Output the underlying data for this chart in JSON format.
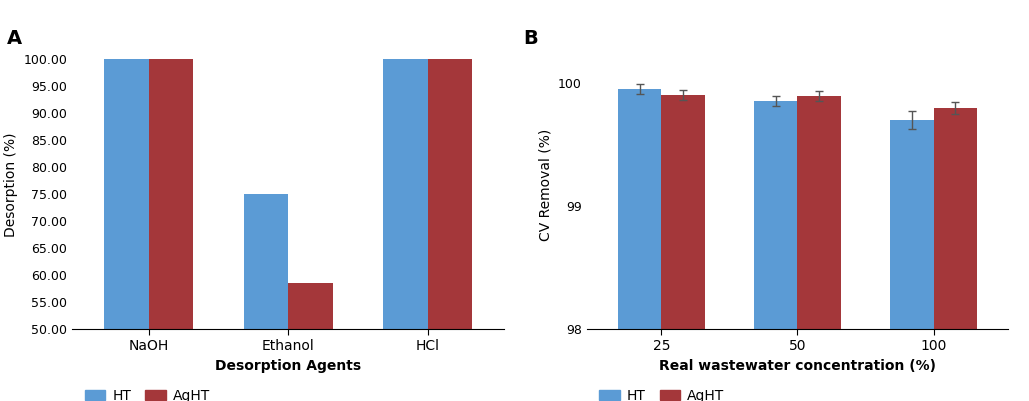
{
  "panel_a": {
    "title": "A",
    "categories": [
      "NaOH",
      "Ethanol",
      "HCl"
    ],
    "ht_values": [
      100.0,
      75.0,
      100.0
    ],
    "aght_values": [
      100.0,
      58.5,
      100.0
    ],
    "ylabel": "Desorption (%)",
    "xlabel": "Desorption Agents",
    "ylim": [
      50.0,
      103.5
    ],
    "yticks": [
      50.0,
      55.0,
      60.0,
      65.0,
      70.0,
      75.0,
      80.0,
      85.0,
      90.0,
      95.0,
      100.0
    ],
    "bar_width": 0.32,
    "ht_color": "#5B9BD5",
    "aght_color": "#A4373A"
  },
  "panel_b": {
    "title": "B",
    "categories": [
      "25",
      "50",
      "100"
    ],
    "ht_values": [
      99.95,
      99.855,
      99.7
    ],
    "aght_values": [
      99.9,
      99.895,
      99.8
    ],
    "ht_errors": [
      0.04,
      0.04,
      0.07
    ],
    "aght_errors": [
      0.04,
      0.04,
      0.05
    ],
    "ylabel": "CV Removal (%)",
    "xlabel": "Real wastewater concentration (%)",
    "ylim": [
      98.0,
      100.35
    ],
    "yticks": [
      98,
      99,
      100
    ],
    "bar_width": 0.32,
    "ht_color": "#5B9BD5",
    "aght_color": "#A4373A"
  },
  "legend_ht": "HT",
  "legend_aght": "AgHT",
  "background_color": "#FFFFFF"
}
